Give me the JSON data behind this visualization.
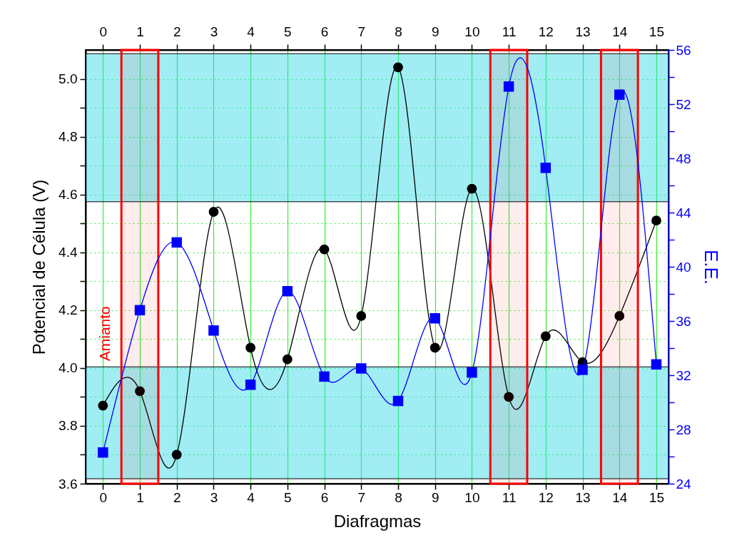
{
  "chart_data": {
    "type": "line",
    "xlabel": "Diafragmas",
    "ylabel": "Potencial de Célula (V)",
    "y2label": "E.E.",
    "x": [
      0,
      1,
      2,
      3,
      4,
      5,
      6,
      7,
      8,
      9,
      10,
      11,
      12,
      13,
      14,
      15
    ],
    "series": [
      {
        "color": "#000000",
        "marker": "circle",
        "values": [
          3.87,
          3.92,
          3.7,
          4.54,
          4.07,
          4.03,
          4.41,
          4.18,
          5.04,
          4.07,
          4.62,
          3.9,
          4.11,
          4.02,
          4.18,
          4.51
        ]
      },
      {
        "color": "#0000ff",
        "marker": "square",
        "axis": "y2",
        "values": [
          26.3,
          36.8,
          41.8,
          35.3,
          31.3,
          38.2,
          31.9,
          32.5,
          30.1,
          36.2,
          32.2,
          53.3,
          47.3,
          32.4,
          52.7,
          32.8
        ]
      }
    ],
    "xlim": [
      -0.47,
      15.33
    ],
    "xticks": [
      0,
      1,
      2,
      3,
      4,
      5,
      6,
      7,
      8,
      9,
      10,
      11,
      12,
      13,
      14,
      15
    ],
    "x2lim": [
      -0.47,
      15.33
    ],
    "x2ticks": [
      0,
      1,
      2,
      3,
      4,
      5,
      6,
      7,
      8,
      9,
      10,
      11,
      12,
      13,
      14,
      15
    ],
    "ylim": [
      3.6,
      5.1
    ],
    "yticks": [
      3.6,
      {
        "value": 3.7,
        "label": null
      },
      3.8,
      {
        "value": 3.9,
        "label": null
      },
      {
        "value": 4,
        "label": "4.0"
      },
      {
        "value": 4.1,
        "label": null
      },
      4.2,
      {
        "value": 4.3,
        "label": null
      },
      4.4,
      {
        "value": 4.5,
        "label": null
      },
      4.6,
      {
        "value": 4.7,
        "label": null
      },
      4.8,
      {
        "value": 4.9,
        "label": null
      },
      {
        "value": 5,
        "label": "5.0"
      }
    ],
    "y2lim": [
      24,
      56
    ],
    "y2ticks": [
      24,
      {
        "value": 26,
        "label": null
      },
      28,
      {
        "value": 30,
        "label": null
      },
      32,
      {
        "value": 34,
        "label": null
      },
      36,
      {
        "value": 38,
        "label": null
      },
      40,
      {
        "value": 42,
        "label": null
      },
      44,
      {
        "value": 46,
        "label": null
      },
      48,
      {
        "value": 50,
        "label": null
      },
      52,
      {
        "value": 54,
        "label": null
      },
      56
    ],
    "bands": [
      {
        "axis": "y",
        "from": 3.617,
        "to": 4.004,
        "label": "Amianto",
        "color": "#2fd8e6"
      },
      {
        "axis": "y",
        "from": 4.575,
        "to": 5.087,
        "color": "#2fd8e6"
      },
      {
        "axis": "x",
        "from": 0.5,
        "to": 1.5,
        "color": "#ff0000"
      },
      {
        "axis": "x",
        "from": 10.5,
        "to": 11.5,
        "color": "#ff0000"
      },
      {
        "axis": "x",
        "from": 13.5,
        "to": 14.5,
        "color": "#ff0000"
      }
    ],
    "grid": true,
    "line_style": "solid"
  }
}
